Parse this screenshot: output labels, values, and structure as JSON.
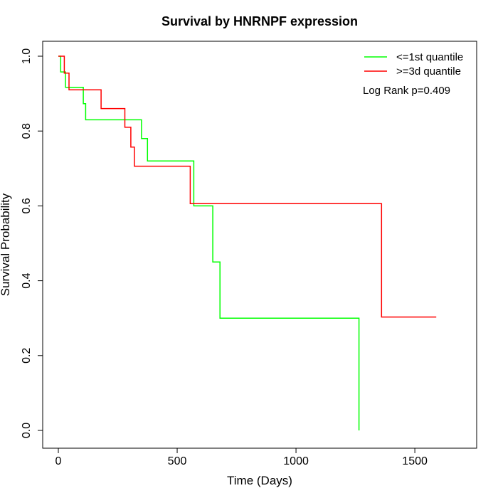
{
  "chart_data": {
    "type": "line",
    "title": "Survival by HNRNPF expression",
    "xlabel": "Time (Days)",
    "ylabel": "Survival Probability",
    "xlim": [
      0,
      1600
    ],
    "ylim": [
      0,
      1.0
    ],
    "x_ticks": [
      0,
      500,
      1000,
      1500
    ],
    "x_tick_labels": [
      "0",
      "500",
      "1000",
      "1500"
    ],
    "y_ticks": [
      0,
      0.2,
      0.4,
      0.6,
      0.8,
      1.0
    ],
    "y_tick_labels": [
      "0.0",
      "0.2",
      "0.4",
      "0.6",
      "0.8",
      "1.0"
    ],
    "grid": false,
    "legend_position": "top-right",
    "annotation": "Log Rank p=0.409",
    "series": [
      {
        "name": "<=1st quantile",
        "color": "#00ff00",
        "step_x": [
          0,
          10,
          10,
          30,
          30,
          105,
          105,
          115,
          115,
          350,
          350,
          375,
          375,
          570,
          570,
          650,
          650,
          680,
          680,
          1265,
          1265
        ],
        "step_y": [
          1.0,
          1.0,
          0.958,
          0.958,
          0.917,
          0.917,
          0.873,
          0.873,
          0.83,
          0.83,
          0.78,
          0.78,
          0.72,
          0.72,
          0.6,
          0.6,
          0.45,
          0.45,
          0.3,
          0.3,
          0.0
        ]
      },
      {
        "name": ">=3d quantile",
        "color": "#ff0000",
        "step_x": [
          0,
          25,
          25,
          45,
          45,
          180,
          180,
          280,
          280,
          305,
          305,
          320,
          320,
          555,
          555,
          1360,
          1360,
          1590
        ],
        "step_y": [
          1.0,
          1.0,
          0.955,
          0.955,
          0.91,
          0.91,
          0.86,
          0.86,
          0.81,
          0.81,
          0.757,
          0.757,
          0.706,
          0.706,
          0.606,
          0.606,
          0.303,
          0.303
        ]
      }
    ]
  }
}
